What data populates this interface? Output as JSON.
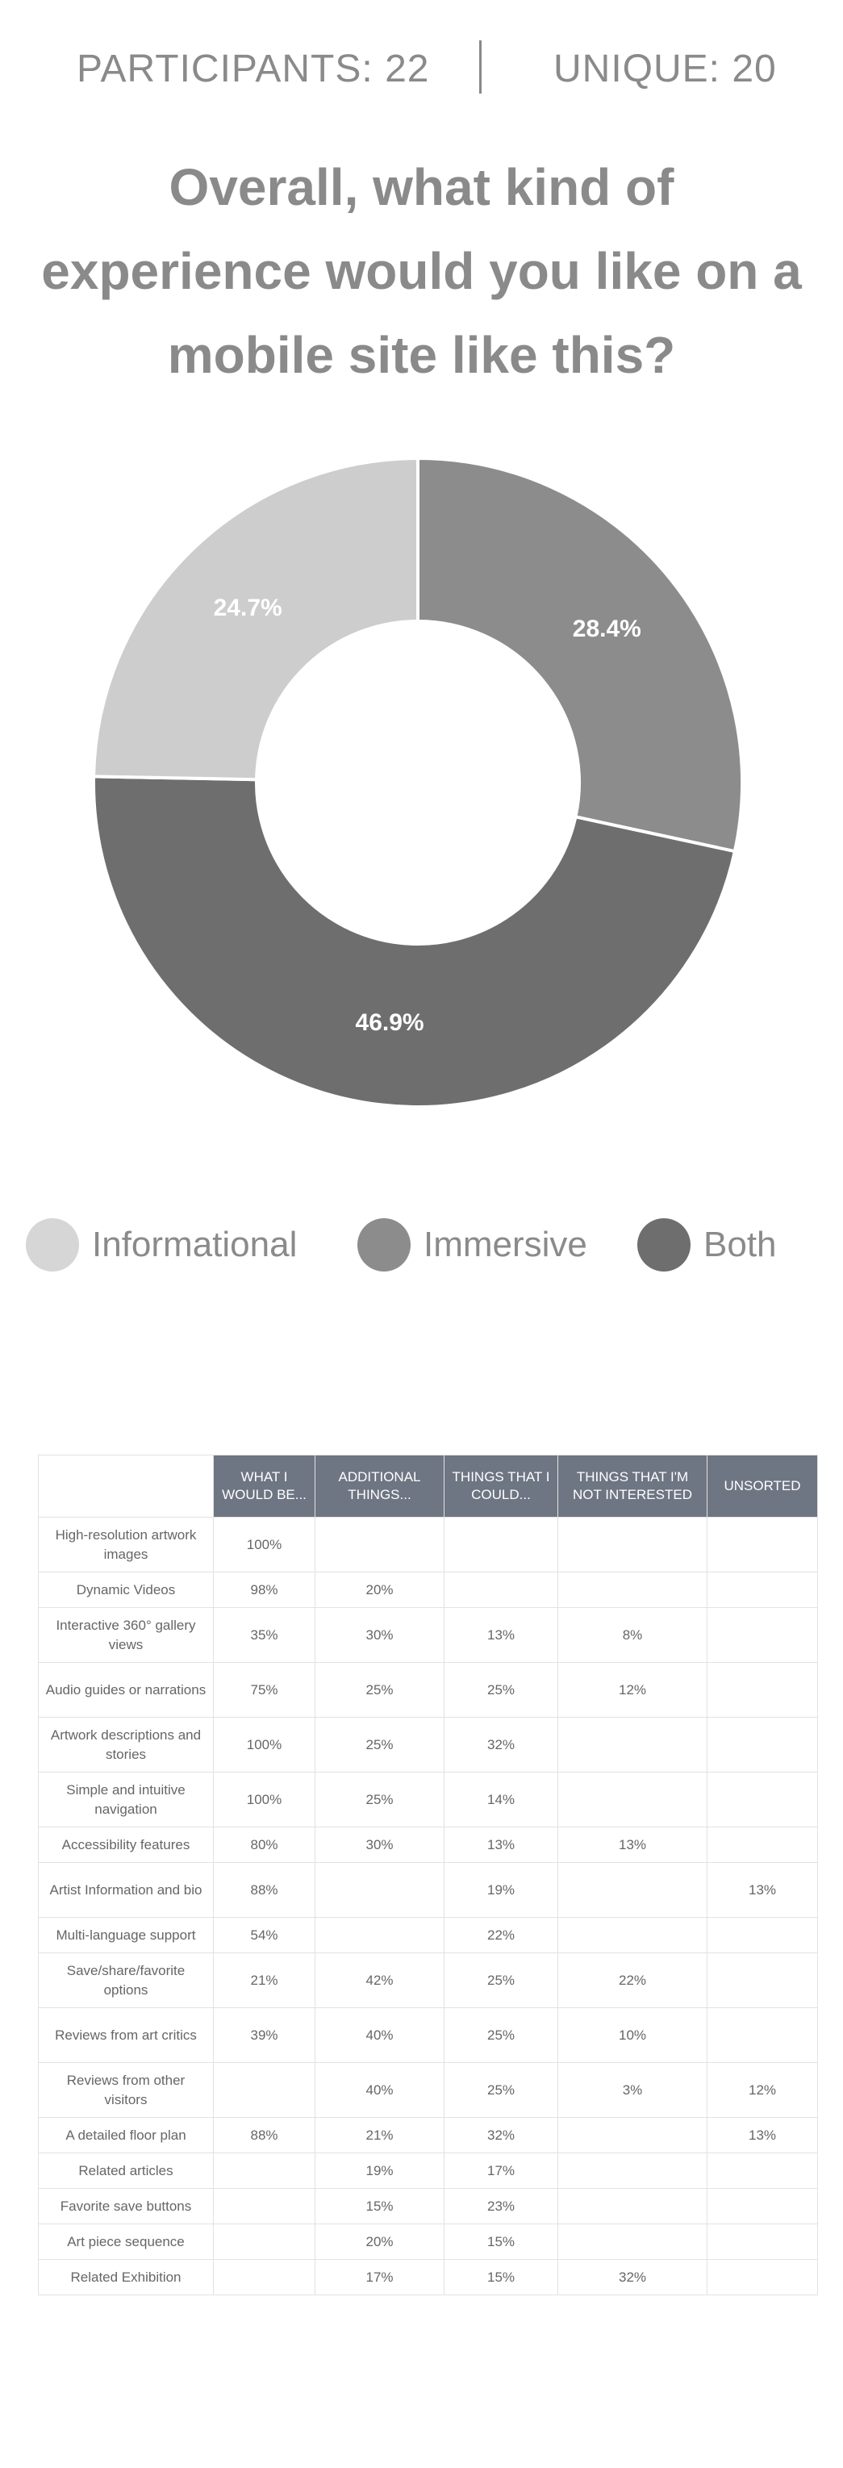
{
  "stats": {
    "participants": "PARTICIPANTS: 22",
    "unique": "UNIQUE: 20"
  },
  "question": "Overall, what kind of experience would you like on a mobile site like this?",
  "chart_data": {
    "type": "pie",
    "donut": true,
    "slices": [
      {
        "label": "Immersive",
        "value": 28.4,
        "display": "28.4%",
        "color": "#8c8c8c"
      },
      {
        "label": "Both",
        "value": 46.9,
        "display": "46.9%",
        "color": "#6e6e6e"
      },
      {
        "label": "Informational",
        "value": 24.7,
        "display": "24.7%",
        "color": "#cdcdcd"
      }
    ],
    "legend": [
      {
        "label": "Informational",
        "color": "#d6d6d6"
      },
      {
        "label": "Immersive",
        "color": "#8c8c8c"
      },
      {
        "label": "Both",
        "color": "#6e6e6e"
      }
    ],
    "legend_position": "bottom"
  },
  "table": {
    "headers": [
      "",
      "WHAT I WOULD BE...",
      "ADDITIONAL THINGS...",
      "THINGS THAT I COULD...",
      "THINGS THAT I'M NOT INTERESTED",
      "UNSORTED"
    ],
    "rows": [
      {
        "label": "High-resolution artwork images",
        "cells": [
          "100%",
          "",
          "",
          "",
          ""
        ]
      },
      {
        "label": "Dynamic Videos",
        "cells": [
          "98%",
          "20%",
          "",
          "",
          ""
        ]
      },
      {
        "label": "Interactive 360° gallery views",
        "cells": [
          "35%",
          "30%",
          "13%",
          "8%",
          ""
        ]
      },
      {
        "label": "Audio guides or narrations",
        "cells": [
          "75%",
          "25%",
          "25%",
          "12%",
          ""
        ]
      },
      {
        "label": "Artwork descriptions and stories",
        "cells": [
          "100%",
          "25%",
          "32%",
          "",
          ""
        ]
      },
      {
        "label": "Simple and intuitive navigation",
        "cells": [
          "100%",
          "25%",
          "14%",
          "",
          ""
        ]
      },
      {
        "label": "Accessibility features",
        "cells": [
          "80%",
          "30%",
          "13%",
          "13%",
          ""
        ]
      },
      {
        "label": "Artist Information and bio",
        "cells": [
          "88%",
          "",
          "19%",
          "",
          "13%"
        ]
      },
      {
        "label": "Multi-language support",
        "cells": [
          "54%",
          "",
          "22%",
          "",
          ""
        ]
      },
      {
        "label": "Save/share/favorite options",
        "cells": [
          "21%",
          "42%",
          "25%",
          "22%",
          ""
        ]
      },
      {
        "label": "Reviews from art critics",
        "cells": [
          "39%",
          "40%",
          "25%",
          "10%",
          ""
        ]
      },
      {
        "label": "Reviews from other visitors",
        "cells": [
          "",
          "40%",
          "25%",
          "3%",
          "12%"
        ]
      },
      {
        "label": "A detailed floor plan",
        "cells": [
          "88%",
          "21%",
          "32%",
          "",
          "13%"
        ]
      },
      {
        "label": "Related articles",
        "cells": [
          "",
          "19%",
          "17%",
          "",
          ""
        ]
      },
      {
        "label": "Favorite save buttons",
        "cells": [
          "",
          "15%",
          "23%",
          "",
          ""
        ]
      },
      {
        "label": "Art piece sequence",
        "cells": [
          "",
          "20%",
          "15%",
          "",
          ""
        ]
      },
      {
        "label": "Related Exhibition",
        "cells": [
          "",
          "17%",
          "15%",
          "32%",
          ""
        ]
      }
    ]
  }
}
